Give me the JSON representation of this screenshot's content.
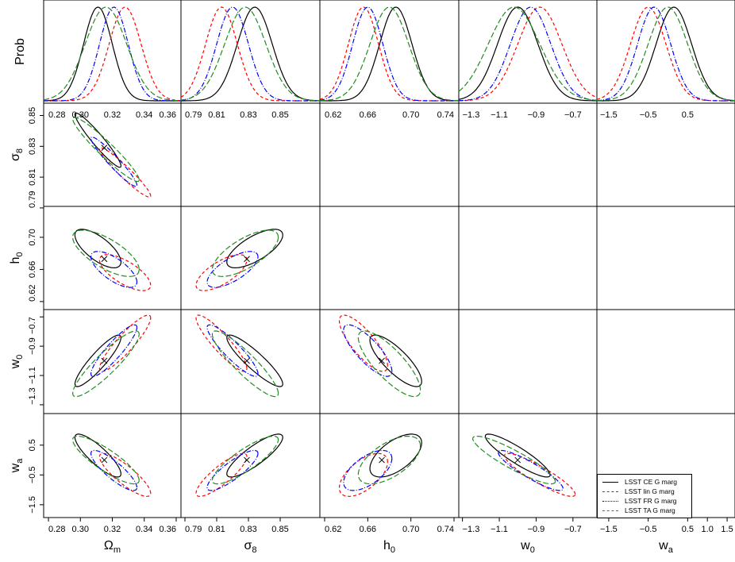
{
  "chart_data": {
    "type": "corner-plot",
    "marginal_ylabel": "Prob",
    "params": [
      {
        "key": "Om",
        "label": "Ω",
        "sub": "m",
        "range": [
          0.277,
          0.363
        ],
        "ticks": [
          "0.28",
          "0.30",
          "0.32",
          "0.34",
          "0.36"
        ],
        "tickvals": [
          0.28,
          0.3,
          0.32,
          0.34,
          0.36
        ],
        "yrange": null,
        "fiducial": 0.315
      },
      {
        "key": "s8",
        "label": "σ",
        "sub": "8",
        "range": [
          0.7875,
          0.875
        ],
        "ticks": [
          "0.79",
          "0.81",
          "0.83",
          "0.85"
        ],
        "tickvals": [
          0.79,
          0.81,
          0.83,
          0.85
        ],
        "yrange": [
          0.791,
          0.858
        ],
        "fiducial": 0.829
      },
      {
        "key": "h0",
        "label": "h",
        "sub": "0",
        "range": [
          0.6156,
          0.7444
        ],
        "ticks": [
          "0.62",
          "0.66",
          "0.70",
          "0.74"
        ],
        "tickvals": [
          0.62,
          0.66,
          0.7,
          0.74
        ],
        "yrange": [
          0.61,
          0.7385
        ],
        "fiducial": 0.673
      },
      {
        "key": "w0",
        "label": "w",
        "sub": "0",
        "range": [
          -1.32,
          -0.57
        ],
        "ticks": [
          "-1.3",
          "-1.1",
          "-0.9",
          "-0.7"
        ],
        "tickvals": [
          -1.3,
          -1.1,
          -0.9,
          -0.7
        ],
        "yrange": [
          -1.36,
          -0.65
        ],
        "fiducial": -1.0
      },
      {
        "key": "wa",
        "label": "w",
        "sub": "a",
        "range": [
          -1.8,
          1.7
        ],
        "ticks": [
          "-1.5",
          "-0.5",
          "0.5",
          "1.0",
          "1.5"
        ],
        "tickvals": [
          -1.5,
          -0.5,
          0.5,
          1.0,
          1.5
        ],
        "yrange": [
          -1.93,
          1.56
        ],
        "fiducial": 0.0
      }
    ],
    "y_tick_labels": {
      "s8": [
        "0.79",
        "0.81",
        "0.83",
        "0.85"
      ],
      "h0": [
        "0.62",
        "0.66",
        "0.70"
      ],
      "w0": [
        "-1.3",
        "-1.1",
        "-0.9",
        "-0.7"
      ],
      "wa": [
        "-1.5",
        "-0.5",
        "0.5"
      ]
    },
    "series": [
      {
        "name": "LSST CE G marg",
        "color": "#000000",
        "dash": "",
        "mean": [
          0.311,
          0.834,
          0.686,
          -1.0,
          0.15
        ],
        "sd": [
          0.009,
          0.011,
          0.015,
          0.11,
          0.45
        ]
      },
      {
        "name": "LSST lin G marg",
        "color": "#ff0000",
        "dash": "4,3",
        "mean": [
          0.328,
          0.813,
          0.656,
          -0.88,
          -0.5
        ],
        "sd": [
          0.01,
          0.01,
          0.014,
          0.12,
          0.45
        ]
      },
      {
        "name": "LSST FR G marg",
        "color": "#0000ff",
        "dash": "6,2,1,2",
        "mean": [
          0.321,
          0.82,
          0.66,
          -0.93,
          -0.35
        ],
        "sd": [
          0.009,
          0.01,
          0.014,
          0.11,
          0.42
        ]
      },
      {
        "name": "LSST TA G marg",
        "color": "#228b22",
        "dash": "7,3",
        "mean": [
          0.316,
          0.828,
          0.68,
          -1.02,
          0.0
        ],
        "sd": [
          0.013,
          0.013,
          0.018,
          0.14,
          0.5
        ]
      }
    ],
    "correlations": {
      "s8|Om": -0.95,
      "h0|Om": -0.7,
      "h0|s8": 0.7,
      "w0|Om": 0.9,
      "w0|s8": -0.9,
      "w0|h0": -0.8,
      "wa|Om": -0.85,
      "wa|s8": 0.85,
      "wa|h0": 0.6,
      "wa|w0": -0.9
    },
    "grid": false,
    "legend_position": "bottom-right"
  }
}
